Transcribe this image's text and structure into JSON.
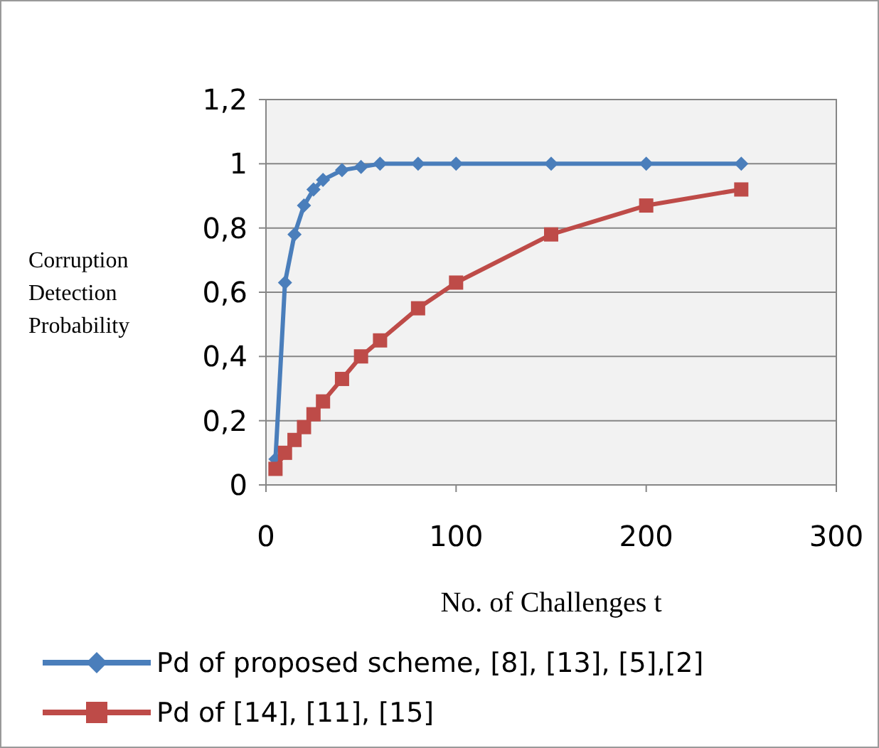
{
  "chart_data": {
    "type": "line",
    "xlabel": "No. of Challenges t",
    "ylabel": "Corruption Detection Probability",
    "xlim": [
      0,
      300
    ],
    "xticks": [
      0,
      100,
      200,
      300
    ],
    "ylim": [
      0,
      1.2
    ],
    "yticks": [
      0,
      {
        "value": 0.2,
        "label": "0,2"
      },
      {
        "value": 0.4,
        "label": "0,4"
      },
      {
        "value": 0.6,
        "label": "0,6"
      },
      {
        "value": 0.8,
        "label": "0,8"
      },
      1,
      {
        "value": 1.2,
        "label": "1,2"
      }
    ],
    "grid": "y",
    "legend": "bottom",
    "series": [
      {
        "name": "Pd of proposed scheme, [8], [13], [5],[2]",
        "color": "#4a7ebb",
        "marker": "diamond",
        "x": [
          5,
          10,
          15,
          20,
          25,
          30,
          40,
          50,
          60,
          80,
          100,
          150,
          200,
          250
        ],
        "values": [
          0.08,
          0.63,
          0.78,
          0.87,
          0.92,
          0.95,
          0.98,
          0.99,
          1.0,
          1.0,
          1.0,
          1.0,
          1.0,
          1.0
        ]
      },
      {
        "name": "Pd of [14], [11], [15]",
        "color": "#be4b48",
        "marker": "square",
        "x": [
          5,
          10,
          15,
          20,
          25,
          30,
          40,
          50,
          60,
          80,
          100,
          150,
          200,
          250
        ],
        "values": [
          0.05,
          0.1,
          0.14,
          0.18,
          0.22,
          0.26,
          0.33,
          0.4,
          0.45,
          0.55,
          0.63,
          0.78,
          0.87,
          0.92
        ]
      }
    ]
  }
}
